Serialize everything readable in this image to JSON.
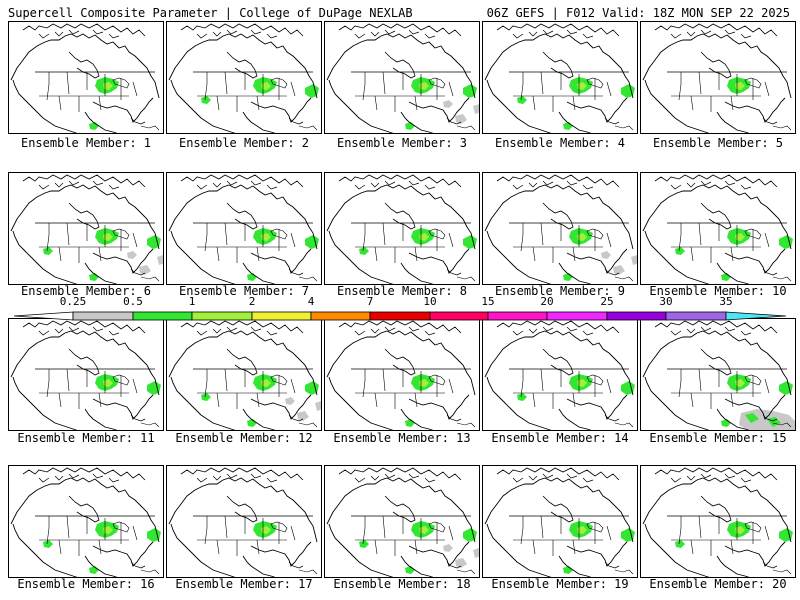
{
  "header": {
    "title": "Supercell Composite Parameter | College of DuPage NEXLAB",
    "run_info": "06Z GEFS | F012 Valid: 18Z MON SEP 22 2025"
  },
  "colorbar": {
    "labels": [
      "0.25",
      "0.5",
      "1",
      "2",
      "4",
      "7",
      "10",
      "15",
      "20",
      "25",
      "30",
      "35"
    ],
    "colors": [
      "#c8c8c8",
      "#32e632",
      "#a0f03c",
      "#f0f032",
      "#ff8c00",
      "#e60000",
      "#ff0064",
      "#ff14c8",
      "#f028ff",
      "#9600dc",
      "#a064e6",
      "#50e6f0"
    ]
  },
  "members": [
    {
      "label": "Ensemble Member: 1",
      "member": 1
    },
    {
      "label": "Ensemble Member: 2",
      "member": 2
    },
    {
      "label": "Ensemble Member: 3",
      "member": 3
    },
    {
      "label": "Ensemble Member: 4",
      "member": 4
    },
    {
      "label": "Ensemble Member: 5",
      "member": 5
    },
    {
      "label": "Ensemble Member: 6",
      "member": 6
    },
    {
      "label": "Ensemble Member: 7",
      "member": 7
    },
    {
      "label": "Ensemble Member: 8",
      "member": 8
    },
    {
      "label": "Ensemble Member: 9",
      "member": 9
    },
    {
      "label": "Ensemble Member: 10",
      "member": 10
    },
    {
      "label": "Ensemble Member: 11",
      "member": 11
    },
    {
      "label": "Ensemble Member: 12",
      "member": 12
    },
    {
      "label": "Ensemble Member: 13",
      "member": 13
    },
    {
      "label": "Ensemble Member: 14",
      "member": 14
    },
    {
      "label": "Ensemble Member: 15",
      "member": 15
    },
    {
      "label": "Ensemble Member: 16",
      "member": 16
    },
    {
      "label": "Ensemble Member: 17",
      "member": 17
    },
    {
      "label": "Ensemble Member: 18",
      "member": 18
    },
    {
      "label": "Ensemble Member: 19",
      "member": 19
    },
    {
      "label": "Ensemble Member: 20",
      "member": 20
    }
  ]
}
